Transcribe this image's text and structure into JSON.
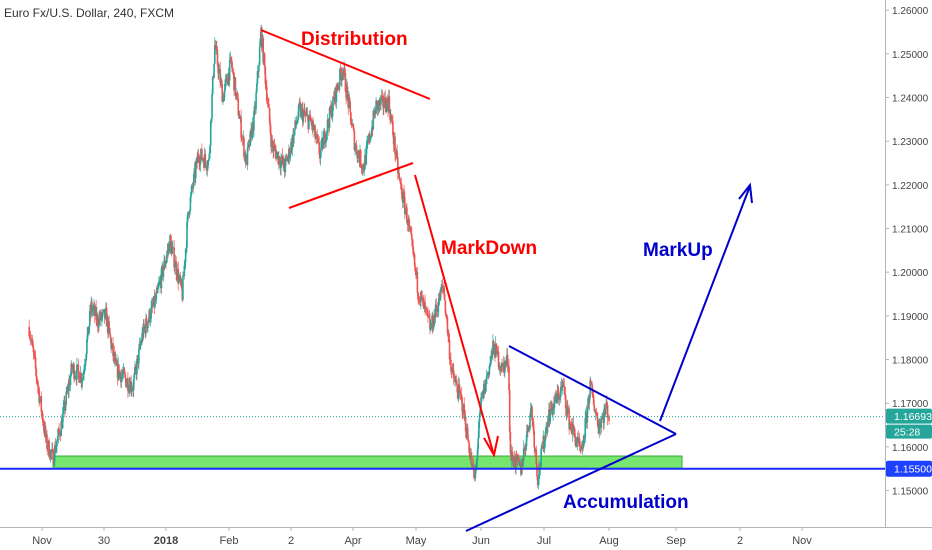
{
  "header": {
    "title": "Euro Fx/U.S. Dollar, 240, FXCM"
  },
  "chart_data": {
    "type": "candlestick",
    "symbol_title": "Euro Fx/U.S. Dollar, 240, FXCM",
    "x_tick_labels": [
      "Nov",
      "30",
      "2018",
      "Feb",
      "2",
      "Apr",
      "May",
      "Jun",
      "Jul",
      "Aug",
      "Sep",
      "2",
      "Nov"
    ],
    "y_tick_labels": [
      "1.26000",
      "1.25000",
      "1.24000",
      "1.23000",
      "1.22000",
      "1.21000",
      "1.20000",
      "1.19000",
      "1.18000",
      "1.17000",
      "1.16000",
      "1.15000"
    ],
    "ylim": [
      1.146,
      1.2605
    ],
    "price_labels": {
      "current_price": "1.16693",
      "countdown": "25:28",
      "horizontal_level": "1.15500"
    },
    "current_price": 1.16693,
    "support_level": 1.155,
    "annotations": [
      "Distribution",
      "MarkDown",
      "MarkUp",
      "Accumulation"
    ],
    "colors": {
      "up": "#26a69a",
      "down": "#ef5350",
      "red_annotation": "#ff0000",
      "blue_annotation": "#0000cc",
      "accumulation_zone": "#76e66e",
      "current_price_badge": "#26a69a",
      "support_badge": "#1e40ff"
    },
    "price_path": [
      [
        "Oct 26",
        1.1875
      ],
      [
        "Nov 3",
        1.161
      ],
      [
        "Nov 6",
        1.1575
      ],
      [
        "Nov 10",
        1.165
      ],
      [
        "Nov 15",
        1.178
      ],
      [
        "Nov 20",
        1.176
      ],
      [
        "Nov 24",
        1.192
      ],
      [
        "Nov 27",
        1.189
      ],
      [
        "Dec 1",
        1.19
      ],
      [
        "Dec 6",
        1.178
      ],
      [
        "Dec 12",
        1.175
      ],
      [
        "Dec 15",
        1.174
      ],
      [
        "Dec 20",
        1.186
      ],
      [
        "Dec 27",
        1.194
      ],
      [
        "Jan 3",
        1.207
      ],
      [
        "Jan 9",
        1.195
      ],
      [
        "Jan 12",
        1.214
      ],
      [
        "Jan 17",
        1.227
      ],
      [
        "Jan 22",
        1.225
      ],
      [
        "Jan 25",
        1.252
      ],
      [
        "Jan 29",
        1.24
      ],
      [
        "Feb 2",
        1.248
      ],
      [
        "Feb 6",
        1.235
      ],
      [
        "Feb 9",
        1.225
      ],
      [
        "Feb 13",
        1.236
      ],
      [
        "Feb 16",
        1.255
      ],
      [
        "Feb 21",
        1.229
      ],
      [
        "Feb 27",
        1.224
      ],
      [
        "Mar 1",
        1.227
      ],
      [
        "Mar 6",
        1.237
      ],
      [
        "Mar 12",
        1.234
      ],
      [
        "Mar 16",
        1.227
      ],
      [
        "Mar 22",
        1.238
      ],
      [
        "Mar 27",
        1.247
      ],
      [
        "Apr 2",
        1.229
      ],
      [
        "Apr 6",
        1.224
      ],
      [
        "Apr 12",
        1.238
      ],
      [
        "Apr 18",
        1.239
      ],
      [
        "Apr 23",
        1.221
      ],
      [
        "Apr 27",
        1.212
      ],
      [
        "May 2",
        1.196
      ],
      [
        "May 8",
        1.187
      ],
      [
        "May 14",
        1.197
      ],
      [
        "May 18",
        1.177
      ],
      [
        "May 23",
        1.17
      ],
      [
        "May 29",
        1.152
      ],
      [
        "Jun 1",
        1.17
      ],
      [
        "Jun 7",
        1.183
      ],
      [
        "Jun 11",
        1.178
      ],
      [
        "Jun 14",
        1.18
      ],
      [
        "Jun 15",
        1.158
      ],
      [
        "Jun 20",
        1.155
      ],
      [
        "Jun 25",
        1.169
      ],
      [
        "Jun 28",
        1.153
      ],
      [
        "Jul 3",
        1.167
      ],
      [
        "Jul 10",
        1.174
      ],
      [
        "Jul 13",
        1.166
      ],
      [
        "Jul 19",
        1.158
      ],
      [
        "Jul 23",
        1.174
      ],
      [
        "Jul 27",
        1.165
      ],
      [
        "Jul 31",
        1.169
      ],
      [
        "Aug 1",
        1.1669
      ]
    ]
  }
}
